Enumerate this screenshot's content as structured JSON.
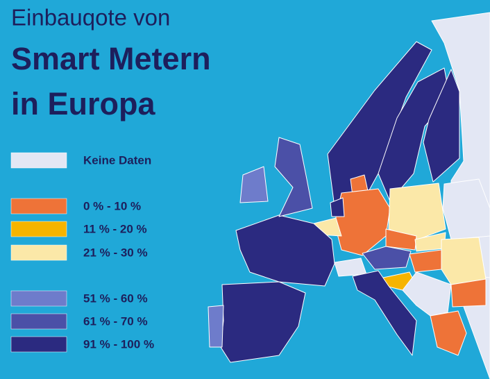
{
  "title": {
    "line1": "Einbauqote von",
    "line2": "Smart Metern",
    "line3": "in Europa"
  },
  "legend": [
    {
      "label": "Keine Daten",
      "color": "#e3e7f4"
    },
    {
      "label": "0 % - 10 %",
      "color": "#ee7338"
    },
    {
      "label": "11 % - 20 %",
      "color": "#f6b400"
    },
    {
      "label": "21 % - 30 %",
      "color": "#fbe8a8"
    },
    {
      "label": "51 % - 60 %",
      "color": "#6e7ccb"
    },
    {
      "label": "61 % - 70 %",
      "color": "#4b50a7"
    },
    {
      "label": "91 % - 100 %",
      "color": "#2b2a80"
    }
  ]
}
